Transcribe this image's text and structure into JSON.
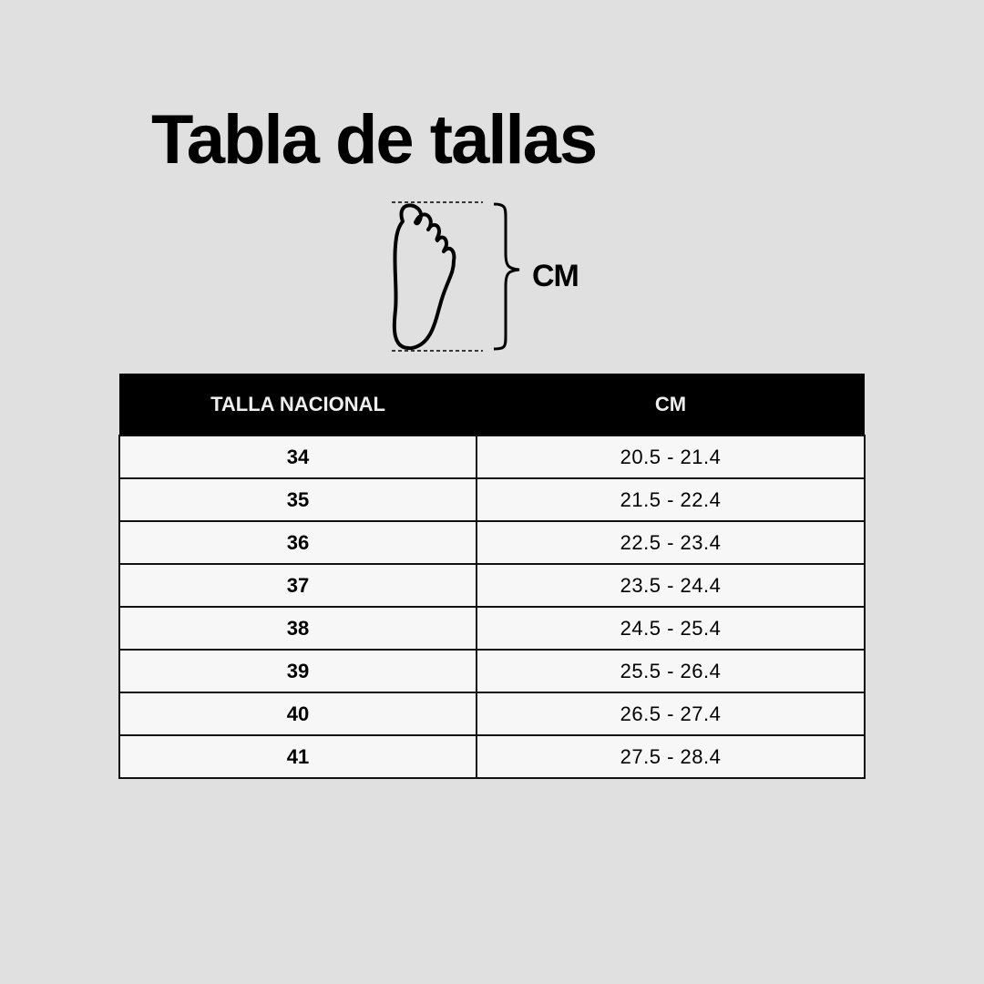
{
  "title": "Tabla de tallas",
  "diagram": {
    "icon": "foot-outline-icon",
    "measure_label": "CM"
  },
  "table": {
    "headers": [
      "TALLA NACIONAL",
      "CM"
    ],
    "rows": [
      [
        "34",
        "20.5 - 21.4"
      ],
      [
        "35",
        "21.5 - 22.4"
      ],
      [
        "36",
        "22.5 - 23.4"
      ],
      [
        "37",
        "23.5 - 24.4"
      ],
      [
        "38",
        "24.5 - 25.4"
      ],
      [
        "39",
        "25.5 - 26.4"
      ],
      [
        "40",
        "26.5 - 27.4"
      ],
      [
        "41",
        "27.5 - 28.4"
      ]
    ]
  },
  "colors": {
    "background": "#e0e0e0",
    "header": "#000000",
    "cell": "#f8f7f7"
  }
}
